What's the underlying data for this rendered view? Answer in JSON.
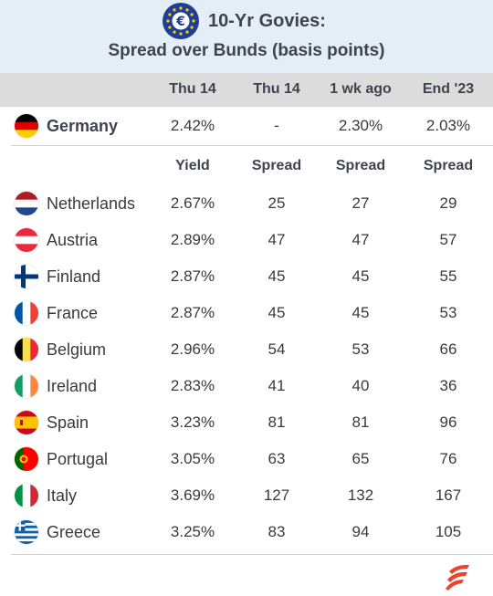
{
  "header": {
    "title_line1": "10-Yr Govies:",
    "title_line2": "Spread over Bunds (basis points)",
    "badge_icon": "euro-coin-icon",
    "background": "#e3eef7"
  },
  "columns": [
    "Thu 14",
    "Thu 14",
    "1 wk ago",
    "End '23"
  ],
  "benchmark": {
    "country": "Germany",
    "flag": "flag-germany-icon",
    "yield": "2.42%",
    "thu14": "-",
    "wk_ago": "2.30%",
    "end23": "2.03%"
  },
  "subheaders": [
    "Yield",
    "Spread",
    "Spread",
    "Spread"
  ],
  "rows": [
    {
      "country": "Netherlands",
      "flag": "flag-netherlands-icon",
      "yield": "2.67%",
      "spread_thu14": "25",
      "spread_wk_ago": "27",
      "spread_end23": "29"
    },
    {
      "country": "Austria",
      "flag": "flag-austria-icon",
      "yield": "2.89%",
      "spread_thu14": "47",
      "spread_wk_ago": "47",
      "spread_end23": "57"
    },
    {
      "country": "Finland",
      "flag": "flag-finland-icon",
      "yield": "2.87%",
      "spread_thu14": "45",
      "spread_wk_ago": "45",
      "spread_end23": "55"
    },
    {
      "country": "France",
      "flag": "flag-france-icon",
      "yield": "2.87%",
      "spread_thu14": "45",
      "spread_wk_ago": "45",
      "spread_end23": "53"
    },
    {
      "country": "Belgium",
      "flag": "flag-belgium-icon",
      "yield": "2.96%",
      "spread_thu14": "54",
      "spread_wk_ago": "53",
      "spread_end23": "66"
    },
    {
      "country": "Ireland",
      "flag": "flag-ireland-icon",
      "yield": "2.83%",
      "spread_thu14": "41",
      "spread_wk_ago": "40",
      "spread_end23": "36"
    },
    {
      "country": "Spain",
      "flag": "flag-spain-icon",
      "yield": "3.23%",
      "spread_thu14": "81",
      "spread_wk_ago": "81",
      "spread_end23": "96"
    },
    {
      "country": "Portugal",
      "flag": "flag-portugal-icon",
      "yield": "3.05%",
      "spread_thu14": "63",
      "spread_wk_ago": "65",
      "spread_end23": "76"
    },
    {
      "country": "Italy",
      "flag": "flag-italy-icon",
      "yield": "3.69%",
      "spread_thu14": "127",
      "spread_wk_ago": "132",
      "spread_end23": "167"
    },
    {
      "country": "Greece",
      "flag": "flag-greece-icon",
      "yield": "3.25%",
      "spread_thu14": "83",
      "spread_wk_ago": "94",
      "spread_end23": "105"
    }
  ],
  "chart_data": {
    "type": "table",
    "title": "10-Yr Govies: Spread over Bunds (basis points)",
    "header_row": [
      "",
      "Thu 14",
      "Thu 14",
      "1 wk ago",
      "End '23"
    ],
    "sub_header_row": [
      "",
      "Yield",
      "Spread",
      "Spread",
      "Spread"
    ],
    "rows": [
      [
        "Germany",
        "2.42%",
        "-",
        "2.30%",
        "2.03%"
      ],
      [
        "Netherlands",
        "2.67%",
        "25",
        "27",
        "29"
      ],
      [
        "Austria",
        "2.89%",
        "47",
        "47",
        "57"
      ],
      [
        "Finland",
        "2.87%",
        "45",
        "45",
        "55"
      ],
      [
        "France",
        "2.87%",
        "45",
        "45",
        "53"
      ],
      [
        "Belgium",
        "2.96%",
        "54",
        "53",
        "66"
      ],
      [
        "Ireland",
        "2.83%",
        "41",
        "40",
        "36"
      ],
      [
        "Spain",
        "3.23%",
        "81",
        "81",
        "96"
      ],
      [
        "Portugal",
        "3.05%",
        "63",
        "65",
        "76"
      ],
      [
        "Italy",
        "3.69%",
        "127",
        "132",
        "167"
      ],
      [
        "Greece",
        "3.25%",
        "83",
        "94",
        "105"
      ]
    ]
  },
  "footer": {
    "logo_icon": "brand-logo-icon",
    "logo_color": "#e8442e"
  }
}
